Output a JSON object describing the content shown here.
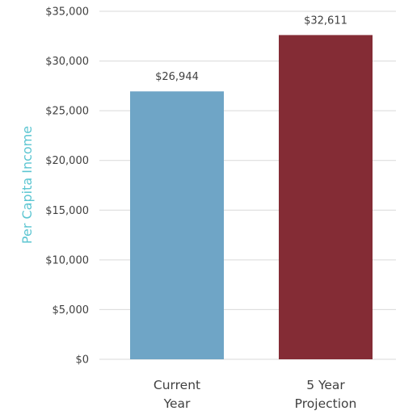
{
  "chart_data": {
    "type": "bar",
    "categories": [
      [
        "Current",
        "Year"
      ],
      [
        "5 Year",
        "Projection"
      ]
    ],
    "values": [
      26944,
      32611
    ],
    "data_labels": [
      "$26,944",
      "$32,611"
    ],
    "colors": [
      "#6fa5c6",
      "#842c35"
    ],
    "ylabel": "Per Capita Income",
    "ylim": [
      0,
      35000
    ],
    "yticks": [
      0,
      5000,
      10000,
      15000,
      20000,
      25000,
      30000,
      35000
    ],
    "ytick_labels": [
      "$0",
      "$5,000",
      "$10,000",
      "$15,000",
      "$20,000",
      "$25,000",
      "$30,000",
      "$35,000"
    ],
    "grid": true,
    "colors_meta": {
      "ylabel_color": "#5bc5d1",
      "grid_color": "#d9d9d9",
      "text_color": "#404040"
    }
  }
}
